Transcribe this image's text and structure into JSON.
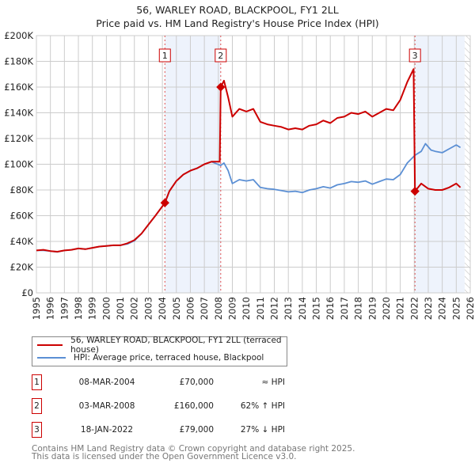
{
  "chart_data": {
    "type": "line",
    "title": "56, WARLEY ROAD, BLACKPOOL, FY1 2LL",
    "subtitle": "Price paid vs. HM Land Registry's House Price Index (HPI)",
    "xlim": [
      1995,
      2026
    ],
    "ylim": [
      0,
      200000
    ],
    "x_ticks": [
      "1995",
      "1996",
      "1997",
      "1998",
      "1999",
      "2000",
      "2001",
      "2002",
      "2003",
      "2004",
      "2005",
      "2006",
      "2007",
      "2008",
      "2009",
      "2010",
      "2011",
      "2012",
      "2013",
      "2014",
      "2015",
      "2016",
      "2017",
      "2018",
      "2019",
      "2020",
      "2021",
      "2022",
      "2023",
      "2024",
      "2025",
      "2026"
    ],
    "y_ticks": [
      {
        "v": 0,
        "label": "£0"
      },
      {
        "v": 20000,
        "label": "£20K"
      },
      {
        "v": 40000,
        "label": "£40K"
      },
      {
        "v": 60000,
        "label": "£60K"
      },
      {
        "v": 80000,
        "label": "£80K"
      },
      {
        "v": 100000,
        "label": "£100K"
      },
      {
        "v": 120000,
        "label": "£120K"
      },
      {
        "v": 140000,
        "label": "£140K"
      },
      {
        "v": 160000,
        "label": "£160K"
      },
      {
        "v": 180000,
        "label": "£180K"
      },
      {
        "v": 200000,
        "label": "£200K"
      }
    ],
    "grid": true,
    "colors": {
      "property": "#cc0000",
      "hpi": "#5b8fd4",
      "shade": "#eef3fc"
    },
    "shaded_ranges": [
      [
        2004.18,
        2008.17
      ],
      [
        2022.05,
        2025.6
      ]
    ],
    "hatched_range": [
      2025.6,
      2026
    ],
    "series": [
      {
        "name": "56, WARLEY ROAD, BLACKPOOL, FY1 2LL (terraced house)",
        "key": "property",
        "points": [
          [
            1995,
            33000
          ],
          [
            1995.5,
            33500
          ],
          [
            1996,
            32500
          ],
          [
            1996.5,
            32000
          ],
          [
            1997,
            33000
          ],
          [
            1997.5,
            33500
          ],
          [
            1998,
            34500
          ],
          [
            1998.5,
            34000
          ],
          [
            1999,
            35000
          ],
          [
            1999.5,
            36000
          ],
          [
            2000,
            36500
          ],
          [
            2000.5,
            37000
          ],
          [
            2001,
            37000
          ],
          [
            2001.5,
            38500
          ],
          [
            2002,
            41000
          ],
          [
            2002.5,
            46000
          ],
          [
            2003,
            53000
          ],
          [
            2003.5,
            60000
          ],
          [
            2004.18,
            70000
          ],
          [
            2004.5,
            79000
          ],
          [
            2005,
            87000
          ],
          [
            2005.5,
            92000
          ],
          [
            2006,
            95000
          ],
          [
            2006.5,
            97000
          ],
          [
            2007,
            100000
          ],
          [
            2007.5,
            102000
          ],
          [
            2008.1,
            102000
          ],
          [
            2008.17,
            160000
          ],
          [
            2008.4,
            165000
          ],
          [
            2008.7,
            152000
          ],
          [
            2009,
            137000
          ],
          [
            2009.5,
            143000
          ],
          [
            2010,
            141000
          ],
          [
            2010.5,
            143000
          ],
          [
            2011,
            133000
          ],
          [
            2011.5,
            131000
          ],
          [
            2012,
            130000
          ],
          [
            2012.5,
            129000
          ],
          [
            2013,
            127000
          ],
          [
            2013.5,
            128000
          ],
          [
            2014,
            127000
          ],
          [
            2014.5,
            130000
          ],
          [
            2015,
            131000
          ],
          [
            2015.5,
            134000
          ],
          [
            2016,
            132000
          ],
          [
            2016.5,
            136000
          ],
          [
            2017,
            137000
          ],
          [
            2017.5,
            140000
          ],
          [
            2018,
            139000
          ],
          [
            2018.5,
            141000
          ],
          [
            2019,
            137000
          ],
          [
            2019.5,
            140000
          ],
          [
            2020,
            143000
          ],
          [
            2020.5,
            142000
          ],
          [
            2021,
            150000
          ],
          [
            2021.5,
            164000
          ],
          [
            2021.95,
            174000
          ],
          [
            2022.05,
            79000
          ],
          [
            2022.5,
            85000
          ],
          [
            2023,
            81000
          ],
          [
            2023.5,
            80000
          ],
          [
            2024,
            80000
          ],
          [
            2024.5,
            82000
          ],
          [
            2025,
            85000
          ],
          [
            2025.3,
            82000
          ]
        ]
      },
      {
        "name": "HPI: Average price, terraced house, Blackpool",
        "key": "hpi",
        "points": [
          [
            1995,
            33000
          ],
          [
            1995.5,
            33000
          ],
          [
            1996,
            32500
          ],
          [
            1996.5,
            31800
          ],
          [
            1997,
            33000
          ],
          [
            1997.5,
            33500
          ],
          [
            1998,
            34500
          ],
          [
            1998.5,
            34000
          ],
          [
            1999,
            35000
          ],
          [
            1999.5,
            36000
          ],
          [
            2000,
            36500
          ],
          [
            2000.5,
            37000
          ],
          [
            2001,
            37000
          ],
          [
            2001.5,
            38000
          ],
          [
            2002,
            40500
          ],
          [
            2002.5,
            46000
          ],
          [
            2003,
            53000
          ],
          [
            2003.5,
            60000
          ],
          [
            2004.18,
            70000
          ],
          [
            2004.5,
            79000
          ],
          [
            2005,
            87000
          ],
          [
            2005.5,
            92000
          ],
          [
            2006,
            95000
          ],
          [
            2006.5,
            97000
          ],
          [
            2007,
            100000
          ],
          [
            2007.5,
            102000
          ],
          [
            2008.17,
            99000
          ],
          [
            2008.4,
            101000
          ],
          [
            2008.7,
            95000
          ],
          [
            2009,
            85000
          ],
          [
            2009.5,
            88000
          ],
          [
            2010,
            87000
          ],
          [
            2010.5,
            88000
          ],
          [
            2011,
            82000
          ],
          [
            2011.5,
            81000
          ],
          [
            2012,
            80500
          ],
          [
            2012.5,
            79500
          ],
          [
            2013,
            78500
          ],
          [
            2013.5,
            79000
          ],
          [
            2014,
            78000
          ],
          [
            2014.5,
            80000
          ],
          [
            2015,
            81000
          ],
          [
            2015.5,
            82500
          ],
          [
            2016,
            81500
          ],
          [
            2016.5,
            84000
          ],
          [
            2017,
            85000
          ],
          [
            2017.5,
            86500
          ],
          [
            2018,
            86000
          ],
          [
            2018.5,
            87000
          ],
          [
            2019,
            84500
          ],
          [
            2019.5,
            86500
          ],
          [
            2020,
            88500
          ],
          [
            2020.5,
            88000
          ],
          [
            2021,
            92000
          ],
          [
            2021.5,
            101000
          ],
          [
            2022.05,
            107000
          ],
          [
            2022.5,
            110000
          ],
          [
            2022.8,
            116000
          ],
          [
            2023.2,
            111000
          ],
          [
            2023.5,
            110000
          ],
          [
            2024,
            109000
          ],
          [
            2024.5,
            112000
          ],
          [
            2025,
            115000
          ],
          [
            2025.3,
            113000
          ]
        ]
      }
    ],
    "sales": [
      {
        "label": "1",
        "x": 2004.18,
        "y": 70000
      },
      {
        "label": "2",
        "x": 2008.17,
        "y": 160000
      },
      {
        "label": "3",
        "x": 2022.05,
        "y": 79000
      }
    ]
  },
  "legend": {
    "property": "56, WARLEY ROAD, BLACKPOOL, FY1 2LL (terraced house)",
    "hpi": "HPI: Average price, terraced house, Blackpool"
  },
  "transactions": [
    {
      "num": "1",
      "date": "08-MAR-2004",
      "price": "£70,000",
      "hpi": "≈ HPI"
    },
    {
      "num": "2",
      "date": "03-MAR-2008",
      "price": "£160,000",
      "hpi": "62% ↑ HPI"
    },
    {
      "num": "3",
      "date": "18-JAN-2022",
      "price": "£79,000",
      "hpi": "27% ↓ HPI"
    }
  ],
  "footer": {
    "line1": "Contains HM Land Registry data © Crown copyright and database right 2025.",
    "line2": "This data is licensed under the Open Government Licence v3.0."
  }
}
